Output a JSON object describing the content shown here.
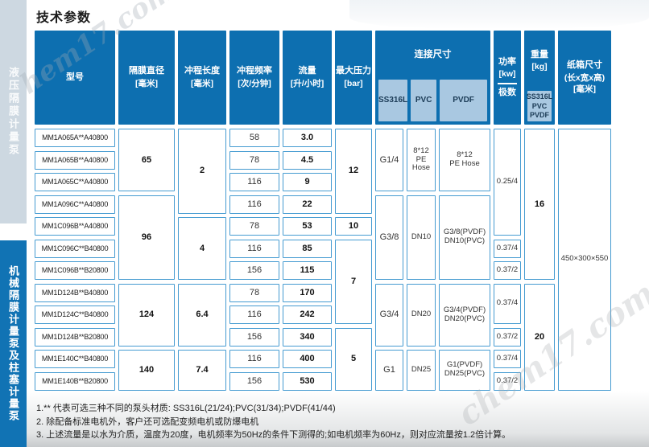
{
  "page": {
    "title": "技术参数"
  },
  "sidebar": {
    "top_label": "液压隔膜计量泵",
    "bottom_label": "机械隔膜计量泵及柱塞计量泵"
  },
  "watermarks": {
    "top_left": "hem17.com",
    "bottom_right": "chem17.com"
  },
  "colors": {
    "header_blue": "#0d6fb0",
    "subheader_blue": "#a9c8e1",
    "cell_border": "#459bd1",
    "sidebar_top_bg": "#cdd8e1",
    "sidebar_bottom_bg": "#1173b4"
  },
  "table": {
    "header": {
      "model": "型号",
      "diameter": "隔膜直径",
      "diameter_unit": "[毫米]",
      "stroke": "冲程长度",
      "stroke_unit": "[毫米]",
      "freq": "冲程频率",
      "freq_unit": "[次/分钟]",
      "flow": "流量",
      "flow_unit": "[升/小时]",
      "pressure": "最大压力",
      "pressure_unit": "[bar]",
      "connection": "连接尺寸",
      "conn_sub_ss316l": "SS316L",
      "conn_sub_pvc": "PVC",
      "conn_sub_pvdf": "PVDF",
      "power": "功率",
      "power_unit": "[kw]",
      "power_sub": "极数",
      "weight": "重量",
      "weight_unit": "[kg]",
      "weight_sub": "SS316L\nPVC\nPVDF",
      "carton": "纸箱尺寸",
      "carton_unit2": "(长x宽x高)",
      "carton_unit": "[毫米]"
    },
    "models": [
      "MM1A065A**A40800",
      "MM1A065B**A40800",
      "MM1A065C**A40800",
      "MM1A096C**A40800",
      "MM1C096B**A40800",
      "MM1C096C**B40800",
      "MM1C096B**B20800",
      "MM1D124B**B40800",
      "MM1D124C**B40800",
      "MM1D124B**B20800",
      "MM1E140C**B40800",
      "MM1E140B**B20800"
    ],
    "frequencies": [
      "58",
      "78",
      "116",
      "116",
      "78",
      "116",
      "156",
      "78",
      "116",
      "156",
      "116",
      "156"
    ],
    "flows": [
      "3.0",
      "4.5",
      "9",
      "22",
      "53",
      "85",
      "115",
      "170",
      "242",
      "340",
      "400",
      "530"
    ],
    "diameter_groups": [
      {
        "value": "65",
        "rows": 3
      },
      {
        "value": "96",
        "rows": 4
      },
      {
        "value": "124",
        "rows": 3
      },
      {
        "value": "140",
        "rows": 2
      }
    ],
    "stroke_groups": [
      {
        "value": "2",
        "rows": 4
      },
      {
        "value": "4",
        "rows": 3
      },
      {
        "value": "6.4",
        "rows": 3
      },
      {
        "value": "7.4",
        "rows": 2
      }
    ],
    "pressure_groups": [
      {
        "value": "12",
        "rows": 4
      },
      {
        "value": "10",
        "rows": 1
      },
      {
        "value": "7",
        "rows": 4
      },
      {
        "value": "5",
        "rows": 3
      }
    ],
    "conn_ss316l_groups": [
      {
        "value": "G1/4",
        "rows": 3
      },
      {
        "value": "G3/8",
        "rows": 4
      },
      {
        "value": "G3/4",
        "rows": 3
      },
      {
        "value": "G1",
        "rows": 2
      }
    ],
    "conn_pvc_groups": [
      {
        "value": "8*12\nPE\nHose",
        "rows": 3
      },
      {
        "value": "DN10",
        "rows": 4
      },
      {
        "value": "DN20",
        "rows": 3
      },
      {
        "value": "DN25",
        "rows": 2
      }
    ],
    "conn_pvdf_groups": [
      {
        "value": "8*12\nPE Hose",
        "rows": 3
      },
      {
        "value": "G3/8(PVDF)\nDN10(PVC)",
        "rows": 4
      },
      {
        "value": "G3/4(PVDF)\nDN20(PVC)",
        "rows": 3
      },
      {
        "value": "G1(PVDF)\nDN25(PVC)",
        "rows": 2
      }
    ],
    "power_groups": [
      {
        "value": "0.25/4",
        "rows": 5
      },
      {
        "value": "0.37/4",
        "rows": 1
      },
      {
        "value": "0.37/2",
        "rows": 1
      },
      {
        "value": "0.37/4",
        "rows": 2
      },
      {
        "value": "0.37/2",
        "rows": 1
      },
      {
        "value": "0.37/4",
        "rows": 1
      },
      {
        "value": "0.37/2",
        "rows": 1
      }
    ],
    "weight_groups": [
      {
        "value": "16",
        "rows": 7
      },
      {
        "value": "20",
        "rows": 5
      }
    ],
    "carton_groups": [
      {
        "value": "450×300×550",
        "rows": 12
      }
    ]
  },
  "footnotes": [
    "1.** 代表可选三种不同的泵头材质: SS316L(21/24);PVC(31/34);PVDF(41/44)",
    "2. 除配备标准电机外，客户还可选配变频电机或防爆电机",
    "3. 上述流量是以水为介质，温度为20度，电机频率为50Hz的条件下测得的;如电机频率为60Hz，则对应流量按1.2倍计算。"
  ]
}
